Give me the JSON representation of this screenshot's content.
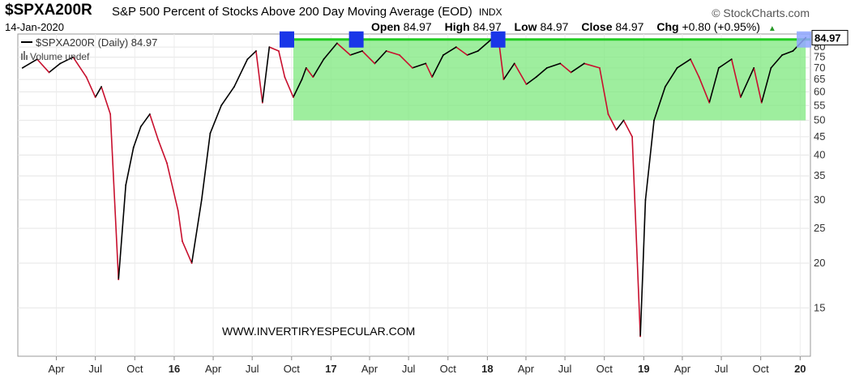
{
  "header": {
    "symbol": "$SPXA200R",
    "description": "S&P 500 Percent of Stocks Above 200 Day Moving Average (EOD)",
    "exchange": "INDX",
    "brand": "© StockCharts.com",
    "date": "14-Jan-2020",
    "open_label": "Open",
    "open_value": "84.97",
    "high_label": "High",
    "high_value": "84.97",
    "low_label": "Low",
    "low_value": "84.97",
    "close_label": "Close",
    "close_value": "84.97",
    "chg_label": "Chg",
    "chg_value": "+0.80 (+0.95%)",
    "chg_arrow": "▲"
  },
  "legend": {
    "series_label": "$SPXA200R (Daily) 84.97",
    "volume_label": "Volume undef"
  },
  "watermark": "WWW.INVERTIRYESPECULAR.COM",
  "colors": {
    "up": "#000000",
    "down": "#c8102e",
    "highlight_zone": "#7ee87e",
    "resistance_line": "#22cc22",
    "marker": "#1a36e8"
  },
  "chart_data": {
    "type": "line",
    "title": "S&P 500 Percent of Stocks Above 200 Day Moving Average (EOD)",
    "y_scale": "log",
    "ylim": [
      11,
      87
    ],
    "y_ticks": [
      15,
      20,
      25,
      30,
      35,
      40,
      45,
      50,
      55,
      60,
      65,
      70,
      75,
      80
    ],
    "last_value_label": "84.97",
    "x_tick_labels": [
      "Apr",
      "Jul",
      "Oct",
      "16",
      "Apr",
      "Jul",
      "Oct",
      "17",
      "Apr",
      "Jul",
      "Oct",
      "18",
      "Apr",
      "Jul",
      "Oct",
      "19",
      "Apr",
      "Jul",
      "Oct",
      "20"
    ],
    "x_tick_bold": [
      "16",
      "17",
      "18",
      "19",
      "20"
    ],
    "x": [
      "2015-01-12",
      "2015-02-15",
      "2015-03-15",
      "2015-04-10",
      "2015-05-10",
      "2015-06-10",
      "2015-07-01",
      "2015-07-15",
      "2015-08-05",
      "2015-08-24",
      "2015-09-10",
      "2015-09-28",
      "2015-10-15",
      "2015-11-05",
      "2015-11-25",
      "2015-12-15",
      "2016-01-10",
      "2016-01-20",
      "2016-02-11",
      "2016-03-05",
      "2016-03-25",
      "2016-04-20",
      "2016-05-20",
      "2016-06-20",
      "2016-07-10",
      "2016-07-25",
      "2016-08-10",
      "2016-09-01",
      "2016-09-15",
      "2016-10-05",
      "2016-10-25",
      "2016-11-04",
      "2016-11-20",
      "2016-12-15",
      "2017-01-15",
      "2017-02-15",
      "2017-03-15",
      "2017-04-13",
      "2017-05-10",
      "2017-06-10",
      "2017-07-10",
      "2017-08-10",
      "2017-08-25",
      "2017-09-20",
      "2017-10-20",
      "2017-11-15",
      "2017-12-10",
      "2018-01-10",
      "2018-01-26",
      "2018-02-08",
      "2018-03-05",
      "2018-04-02",
      "2018-04-25",
      "2018-05-20",
      "2018-06-20",
      "2018-07-15",
      "2018-08-15",
      "2018-09-20",
      "2018-10-10",
      "2018-10-29",
      "2018-11-15",
      "2018-12-05",
      "2018-12-24",
      "2019-01-05",
      "2019-01-25",
      "2019-02-20",
      "2019-03-20",
      "2019-04-20",
      "2019-05-10",
      "2019-06-03",
      "2019-06-25",
      "2019-07-25",
      "2019-08-15",
      "2019-09-15",
      "2019-10-03",
      "2019-10-25",
      "2019-11-20",
      "2019-12-15",
      "2020-01-14"
    ],
    "y": [
      70,
      74,
      68,
      72,
      75,
      66,
      58,
      62,
      52,
      18,
      33,
      42,
      48,
      52,
      44,
      38,
      28,
      23,
      20,
      30,
      46,
      55,
      62,
      74,
      78,
      56,
      80,
      78,
      66,
      58,
      65,
      70,
      66,
      74,
      82,
      76,
      78,
      72,
      78,
      76,
      70,
      72,
      66,
      76,
      80,
      76,
      78,
      84,
      86,
      65,
      72,
      63,
      66,
      70,
      72,
      68,
      72,
      70,
      52,
      47,
      50,
      45,
      12.5,
      30,
      50,
      62,
      70,
      74,
      66,
      56,
      70,
      74,
      58,
      70,
      56,
      70,
      76,
      78,
      84.97
    ],
    "resistance_level": 84,
    "zone": {
      "from": "2016-10-05",
      "to": "2020-01-14",
      "low": 50,
      "high": 84
    },
    "markers": [
      "2016-09-20",
      "2017-03-01",
      "2018-01-26",
      "2020-01-10"
    ]
  }
}
